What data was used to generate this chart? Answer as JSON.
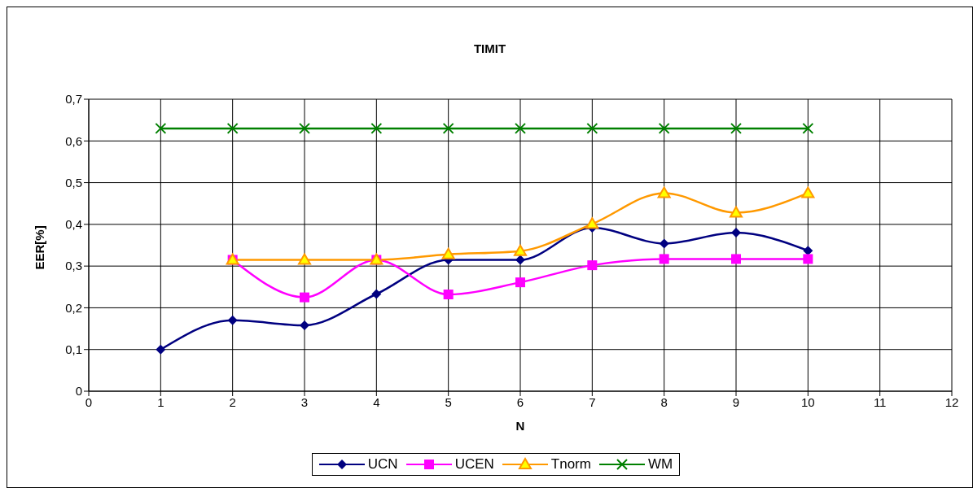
{
  "chart_data": {
    "type": "line",
    "title": "TIMIT",
    "xlabel": "N",
    "ylabel": "EER[%]",
    "x": [
      1,
      2,
      3,
      4,
      5,
      6,
      7,
      8,
      9,
      10
    ],
    "series": [
      {
        "name": "UCN",
        "color": "#000080",
        "marker": "diamond",
        "values": [
          0.1,
          0.17,
          0.158,
          0.233,
          0.315,
          0.315,
          0.392,
          0.354,
          0.38,
          0.337
        ]
      },
      {
        "name": "UCEN",
        "color": "#ff00ff",
        "marker": "square",
        "values": [
          null,
          0.315,
          0.225,
          0.315,
          0.232,
          0.261,
          0.302,
          0.317,
          0.317,
          0.317
        ]
      },
      {
        "name": "Tnorm",
        "color": "#ff9900",
        "marker": "triangle",
        "values": [
          null,
          0.315,
          0.315,
          0.315,
          0.328,
          0.336,
          0.401,
          0.475,
          0.428,
          0.475
        ]
      },
      {
        "name": "WM",
        "color": "#008000",
        "marker": "cross",
        "values": [
          0.63,
          0.63,
          0.63,
          0.63,
          0.63,
          0.63,
          0.63,
          0.63,
          0.63,
          0.63
        ]
      }
    ],
    "xlim": [
      0,
      12
    ],
    "xticks": [
      0,
      1,
      2,
      3,
      4,
      5,
      6,
      7,
      8,
      9,
      10,
      11,
      12
    ],
    "ylim": [
      0,
      0.7
    ],
    "yticks": [
      {
        "value": 0,
        "label": "0"
      },
      {
        "value": 0.1,
        "label": "0,1"
      },
      {
        "value": 0.2,
        "label": "0,2"
      },
      {
        "value": 0.3,
        "label": "0,3"
      },
      {
        "value": 0.4,
        "label": "0,4"
      },
      {
        "value": 0.5,
        "label": "0,5"
      },
      {
        "value": 0.6,
        "label": "0,6"
      },
      {
        "value": 0.7,
        "label": "0,7"
      }
    ],
    "grid": true,
    "legend": "bottom",
    "line_style": "solid"
  }
}
